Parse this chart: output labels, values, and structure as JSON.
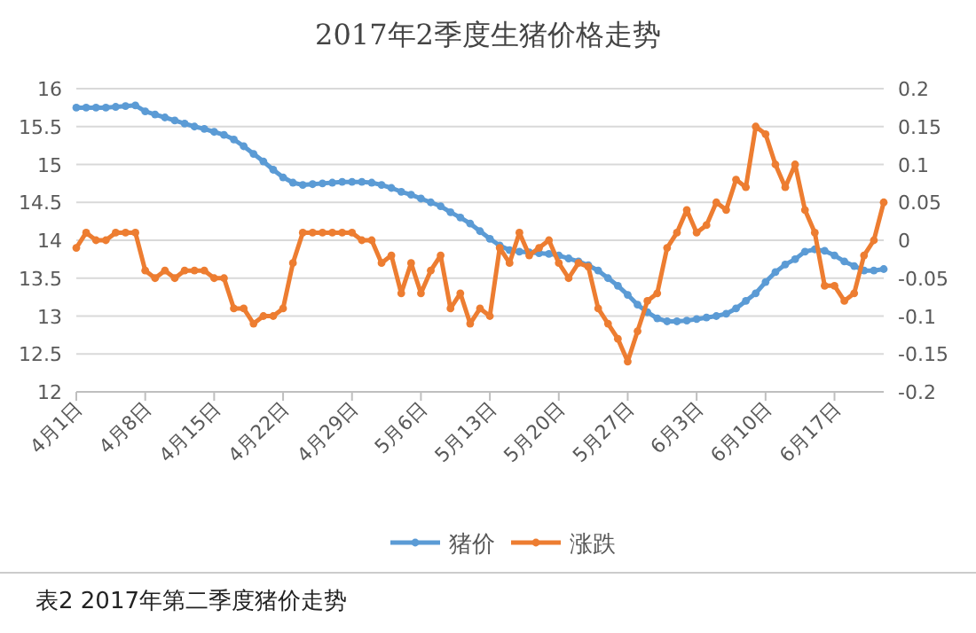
{
  "chart_data": {
    "type": "line",
    "title": "2017年2季度生猪价格走势",
    "categories": [
      "4月1日",
      null,
      null,
      null,
      null,
      null,
      null,
      "4月8日",
      null,
      null,
      null,
      null,
      null,
      null,
      "4月15日",
      null,
      null,
      null,
      null,
      null,
      null,
      "4月22日",
      null,
      null,
      null,
      null,
      null,
      null,
      "4月29日",
      null,
      null,
      null,
      null,
      null,
      null,
      "5月6日",
      null,
      null,
      null,
      null,
      null,
      null,
      "5月13日",
      null,
      null,
      null,
      null,
      null,
      null,
      "5月20日",
      null,
      null,
      null,
      null,
      null,
      null,
      "5月27日",
      null,
      null,
      null,
      null,
      null,
      null,
      "6月3日",
      null,
      null,
      null,
      null,
      null,
      null,
      "6月10日",
      null,
      null,
      null,
      null,
      null,
      null,
      "6月17日",
      null,
      null,
      null,
      null,
      null
    ],
    "series": [
      {
        "name": "猪价",
        "color": "#5b9bd5",
        "values": [
          15.75,
          15.75,
          15.75,
          15.75,
          15.76,
          15.77,
          15.78,
          15.7,
          15.66,
          15.62,
          15.58,
          15.54,
          15.5,
          15.47,
          15.43,
          15.39,
          15.33,
          15.24,
          15.14,
          15.04,
          14.93,
          14.83,
          14.76,
          14.73,
          14.74,
          14.75,
          14.76,
          14.77,
          14.77,
          14.77,
          14.76,
          14.73,
          14.69,
          14.64,
          14.6,
          14.55,
          14.5,
          14.45,
          14.37,
          14.3,
          14.22,
          14.12,
          14.02,
          13.93,
          13.87,
          13.85,
          13.84,
          13.83,
          13.82,
          13.8,
          13.76,
          13.72,
          13.67,
          13.6,
          13.5,
          13.4,
          13.28,
          13.15,
          13.05,
          12.97,
          12.93,
          12.93,
          12.94,
          12.96,
          12.98,
          13.0,
          13.03,
          13.1,
          13.2,
          13.3,
          13.45,
          13.58,
          13.68,
          13.75,
          13.85,
          13.88,
          13.86,
          13.8,
          13.72,
          13.66,
          13.6,
          13.6,
          13.62
        ]
      },
      {
        "name": "涨跌",
        "color": "#ed7d31",
        "axis": "y2",
        "values": [
          -0.01,
          0.01,
          0,
          0,
          0.01,
          0.01,
          0.01,
          -0.04,
          -0.05,
          -0.04,
          -0.05,
          -0.04,
          -0.04,
          -0.04,
          -0.05,
          -0.05,
          -0.09,
          -0.09,
          -0.11,
          -0.1,
          -0.1,
          -0.09,
          -0.03,
          0.01,
          0.01,
          0.01,
          0.01,
          0.01,
          0.01,
          0,
          0,
          -0.03,
          -0.02,
          -0.07,
          -0.03,
          -0.07,
          -0.04,
          -0.02,
          -0.09,
          -0.07,
          -0.11,
          -0.09,
          -0.1,
          -0.01,
          -0.03,
          0.01,
          -0.02,
          -0.01,
          0,
          -0.03,
          -0.05,
          -0.03,
          -0.035,
          -0.09,
          -0.11,
          -0.13,
          -0.16,
          -0.12,
          -0.08,
          -0.07,
          -0.01,
          0.01,
          0.04,
          0.01,
          0.02,
          0.05,
          0.04,
          0.08,
          0.07,
          0.15,
          0.14,
          0.1,
          0.07,
          0.1,
          0.04,
          0.01,
          -0.06,
          -0.06,
          -0.08,
          -0.07,
          -0.02,
          0,
          0.05
        ]
      }
    ],
    "ylim": [
      12,
      16
    ],
    "yticks": [
      12,
      12.5,
      13,
      13.5,
      14,
      14.5,
      15,
      15.5,
      16
    ],
    "y2lim": [
      -0.2,
      0.2
    ],
    "y2ticks": [
      -0.2,
      -0.15,
      -0.1,
      -0.05,
      0,
      0.05,
      0.1,
      0.15,
      0.2
    ],
    "grid": "y",
    "legend": "bottom",
    "marker": "circle",
    "line_style": "solid",
    "annotations": [
      "表2 2017年第二季度猪价走势"
    ]
  }
}
